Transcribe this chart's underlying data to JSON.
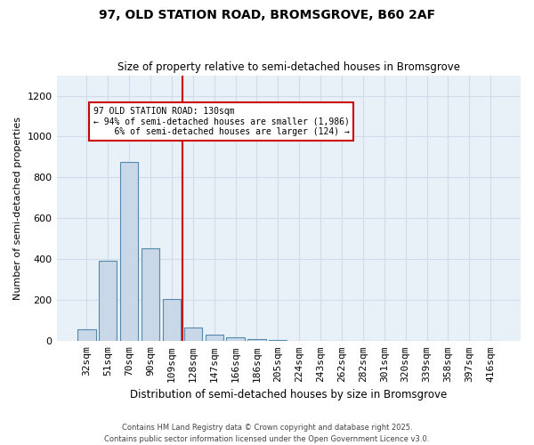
{
  "title1": "97, OLD STATION ROAD, BROMSGROVE, B60 2AF",
  "title2": "Size of property relative to semi-detached houses in Bromsgrove",
  "xlabel": "Distribution of semi-detached houses by size in Bromsgrove",
  "ylabel": "Number of semi-detached properties",
  "categories": [
    "32sqm",
    "51sqm",
    "70sqm",
    "90sqm",
    "109sqm",
    "128sqm",
    "147sqm",
    "166sqm",
    "186sqm",
    "205sqm",
    "224sqm",
    "243sqm",
    "262sqm",
    "282sqm",
    "301sqm",
    "320sqm",
    "339sqm",
    "358sqm",
    "397sqm",
    "416sqm"
  ],
  "bar_values": [
    60,
    395,
    875,
    455,
    205,
    65,
    30,
    20,
    10,
    5,
    3,
    2,
    1,
    1,
    0,
    0,
    0,
    0,
    0,
    0
  ],
  "bar_color": "#c8d8e8",
  "bar_edge_color": "#5588aa",
  "property_bin_index": 4.5,
  "vline_label": "97 OLD STATION ROAD: 130sqm",
  "smaller_pct": "94%",
  "smaller_count": "1,986",
  "larger_pct": "6%",
  "larger_count": "124",
  "annotation_box_color": "#cc0000",
  "vline_color": "#cc0000",
  "ylim": [
    0,
    1300
  ],
  "yticks": [
    0,
    200,
    400,
    600,
    800,
    1000,
    1200
  ],
  "grid_color": "#d0dde8",
  "bg_color": "#e8f0f8",
  "footer1": "Contains HM Land Registry data © Crown copyright and database right 2025.",
  "footer2": "Contains public sector information licensed under the Open Government Licence v3.0."
}
